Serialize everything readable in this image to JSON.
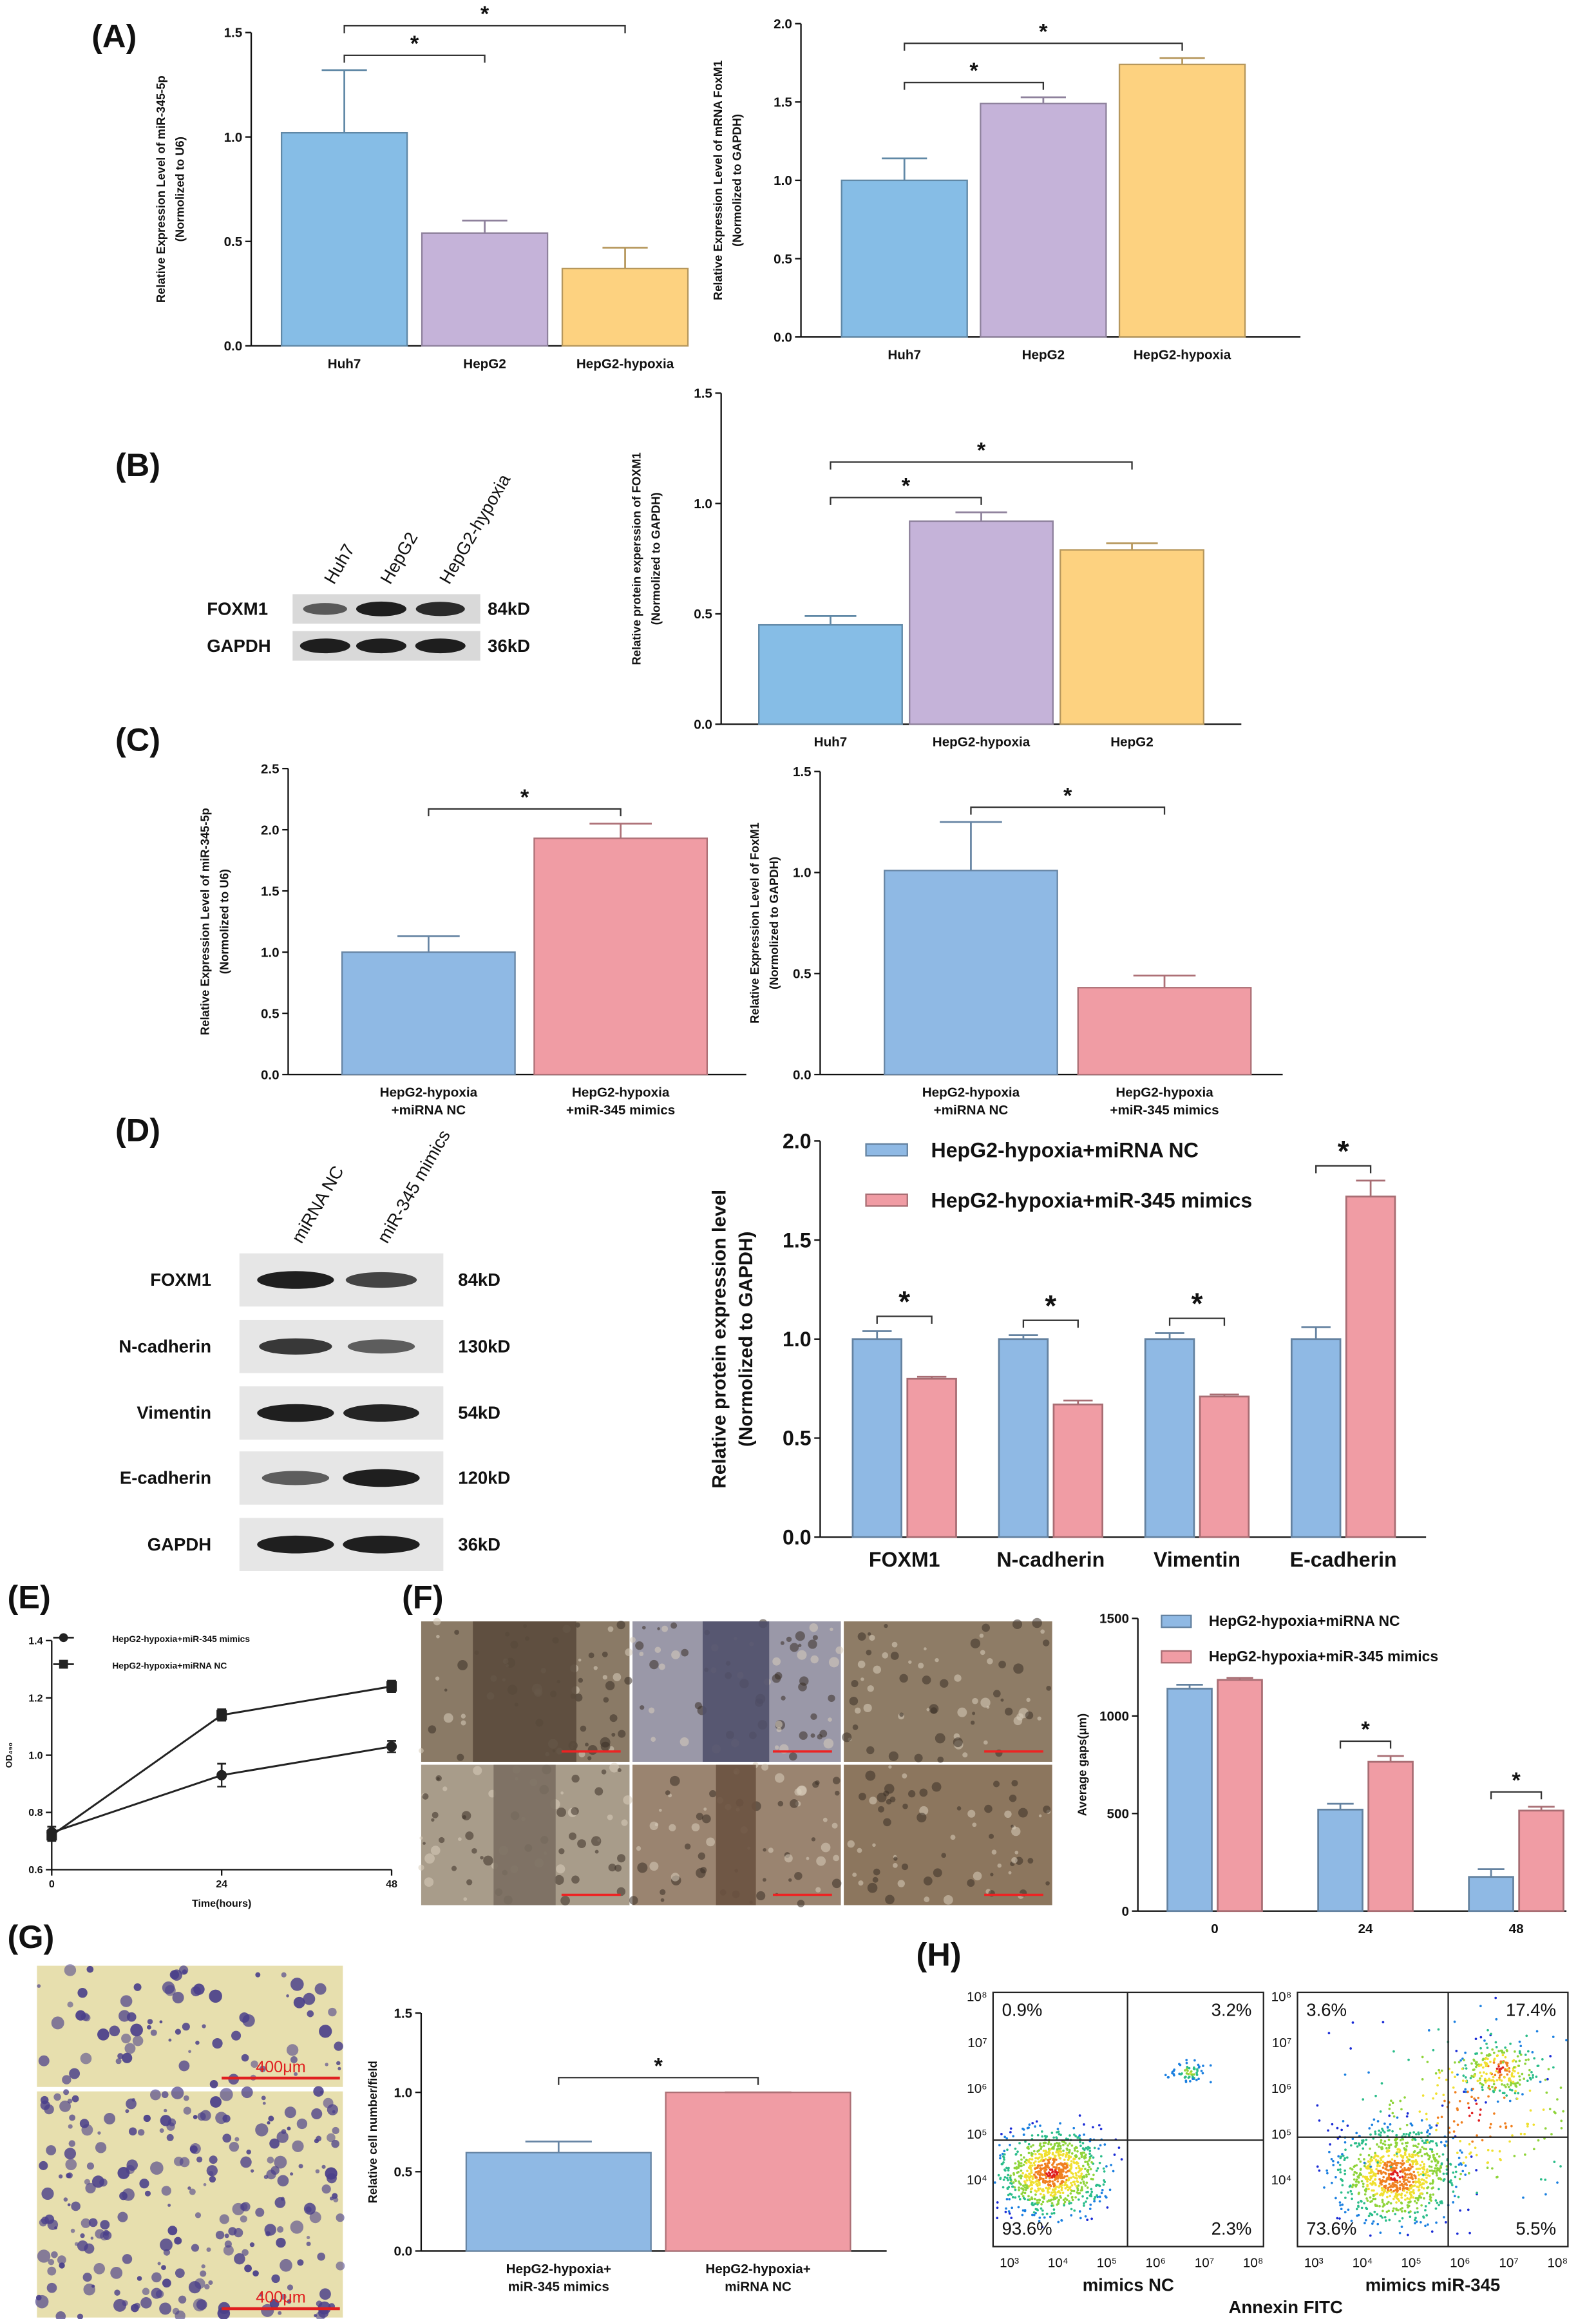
{
  "panel_labels": [
    "(A)",
    "(B)",
    "(C)",
    "(D)",
    "(E)",
    "(F)",
    "(G)",
    "(H)"
  ],
  "chart_data": [
    {
      "type": "bar",
      "categories": [
        "Huh7",
        "HepG2",
        "HepG2-hypoxia"
      ],
      "values": [
        1.02,
        0.54,
        0.37
      ],
      "errors": [
        0.3,
        0.06,
        0.1
      ],
      "colors": [
        "#86bde6",
        "#c5b3d9",
        "#fdd280"
      ],
      "ylim": [
        0,
        1.5
      ],
      "yticks": [
        {
          "value": 0,
          "label": "0.0"
        },
        0.5,
        {
          "value": 1,
          "label": "1.0"
        },
        1.5
      ],
      "ylabel": "Relative Expression Level of miR-345-5p\n(Normolized to U6)",
      "significance": [
        {
          "label": "*",
          "pair": [
            0,
            1
          ]
        },
        {
          "label": "*",
          "pair": [
            0,
            2
          ]
        }
      ]
    },
    {
      "type": "bar",
      "categories": [
        "Huh7",
        "HepG2",
        "HepG2-hypoxia"
      ],
      "values": [
        1.0,
        1.49,
        1.74
      ],
      "errors": [
        0.14,
        0.04,
        0.04
      ],
      "colors": [
        "#86bde6",
        "#c5b3d9",
        "#fdd280"
      ],
      "ylim": [
        0,
        2
      ],
      "yticks": [
        {
          "value": 0,
          "label": "0.0"
        },
        0.5,
        {
          "value": 1,
          "label": "1.0"
        },
        1.5,
        {
          "value": 2,
          "label": "2.0"
        }
      ],
      "ylabel": "Relative Expression Level of  mRNA FoxM1\n(Normolized to GAPDH)",
      "significance": [
        {
          "label": "*",
          "pair": [
            0,
            1
          ]
        },
        {
          "label": "*",
          "pair": [
            0,
            2
          ]
        }
      ]
    },
    {
      "type": "bar",
      "categories": [
        "Huh7",
        "HepG2-hypoxia",
        "HepG2"
      ],
      "values": [
        0.45,
        0.92,
        0.79
      ],
      "errors": [
        0.04,
        0.04,
        0.03
      ],
      "colors": [
        "#86bde6",
        "#c5b3d9",
        "#fdd280"
      ],
      "ylim": [
        0,
        1.5
      ],
      "yticks": [
        {
          "value": 0,
          "label": "0.0"
        },
        0.5,
        {
          "value": 1,
          "label": "1.0"
        },
        1.5
      ],
      "ylabel": "Relative protein experssion of FOXM1\n(Normolized to GAPDH)",
      "significance": [
        {
          "label": "*",
          "pair": [
            0,
            1
          ]
        },
        {
          "label": "*",
          "pair": [
            0,
            2
          ]
        }
      ]
    },
    {
      "type": "bar",
      "categories": [
        "HepG2-hypoxia\n+miRNA NC",
        "HepG2-hypoxia\n+miR-345 mimics"
      ],
      "values": [
        1.0,
        1.93
      ],
      "errors": [
        0.13,
        0.12
      ],
      "colors": [
        "#8fb9e4",
        "#f09ca4"
      ],
      "ylim": [
        0,
        2.5
      ],
      "yticks": [
        {
          "value": 0,
          "label": "0.0"
        },
        0.5,
        {
          "value": 1,
          "label": "1.0"
        },
        1.5,
        {
          "value": 2,
          "label": "2.0"
        },
        2.5
      ],
      "ylabel": "Relative Expression Level of  miR-345-5p\n(Normolized to U6)",
      "significance": [
        {
          "label": "*",
          "pair": [
            0,
            1
          ]
        }
      ]
    },
    {
      "type": "bar",
      "categories": [
        "HepG2-hypoxia\n+miRNA NC",
        "HepG2-hypoxia\n+miR-345 mimics"
      ],
      "values": [
        1.01,
        0.43
      ],
      "errors": [
        0.24,
        0.06
      ],
      "colors": [
        "#8fb9e4",
        "#f09ca4"
      ],
      "ylim": [
        0,
        1.5
      ],
      "yticks": [
        {
          "value": 0,
          "label": "0.0"
        },
        0.5,
        {
          "value": 1,
          "label": "1.0"
        },
        1.5
      ],
      "ylabel": "Relative Expression Level of FoxM1\n(Normolized to GAPDH)",
      "significance": [
        {
          "label": "*",
          "pair": [
            0,
            1
          ]
        }
      ]
    },
    {
      "type": "grouped_bar",
      "categories": [
        "FOXM1",
        "N-cadherin",
        "Vimentin",
        "E-cadherin"
      ],
      "series": [
        {
          "name": "HepG2-hypoxia+miRNA NC",
          "color": "#8fb9e4",
          "values": [
            1.0,
            1.0,
            1.0,
            1.0
          ],
          "errors": [
            0.04,
            0.02,
            0.03,
            0.06
          ]
        },
        {
          "name": "HepG2-hypoxia+miR-345 mimics",
          "color": "#f09ca4",
          "values": [
            0.8,
            0.67,
            0.71,
            1.72
          ],
          "errors": [
            0.01,
            0.02,
            0.01,
            0.08
          ]
        }
      ],
      "ylim": [
        0,
        2
      ],
      "yticks": [
        {
          "value": 0,
          "label": "0.0"
        },
        0.5,
        {
          "value": 1,
          "label": "1.0"
        },
        1.5,
        {
          "value": 2,
          "label": "2.0"
        }
      ],
      "ylabel": "Relative protein expression level\n(Normolized to GAPDH)",
      "legend": "upper left",
      "significance": [
        {
          "label": "*",
          "category": 0
        },
        {
          "label": "*",
          "category": 1
        },
        {
          "label": "*",
          "category": 2
        },
        {
          "label": "*",
          "category": 3
        }
      ]
    },
    {
      "type": "line",
      "x": [
        0,
        24,
        48
      ],
      "xlim": [
        0,
        48
      ],
      "xticks": [
        0,
        24,
        48
      ],
      "xlabel": "Time(hours)",
      "ylabel": "OD₄₉₀",
      "series": [
        {
          "name": "HepG2-hypoxia+miR-345 mimics",
          "color": "#222222",
          "marker": "circle",
          "values": [
            0.73,
            0.93,
            1.03
          ],
          "errors": [
            0.02,
            0.04,
            0.02
          ]
        },
        {
          "name": "HepG2-hypoxia+miRNA NC",
          "color": "#222222",
          "marker": "square",
          "values": [
            0.72,
            1.14,
            1.24
          ],
          "errors": [
            0.02,
            0.02,
            0.02
          ]
        }
      ],
      "ylim": [
        0.6,
        1.4
      ],
      "yticks": [
        0.6,
        0.8,
        {
          "value": 1,
          "label": "1.0"
        },
        1.2,
        1.4
      ],
      "legend": "upper left"
    },
    {
      "type": "grouped_bar",
      "categories": [
        "0",
        "24",
        "48"
      ],
      "series": [
        {
          "name": "HepG2-hypoxia+miRNA NC",
          "color": "#8fb9e4",
          "values": [
            1140,
            520,
            175
          ],
          "errors": [
            20,
            30,
            40
          ]
        },
        {
          "name": "HepG2-hypoxia+miR-345 mimics",
          "color": "#f09ca4",
          "values": [
            1185,
            765,
            515
          ],
          "errors": [
            10,
            30,
            20
          ]
        }
      ],
      "ylim": [
        0,
        1500
      ],
      "yticks": [
        0,
        500,
        1000,
        1500
      ],
      "ylabel": "Average gaps(μm)",
      "legend": "upper left",
      "significance": [
        {
          "label": "*",
          "category": 1
        },
        {
          "label": "*",
          "category": 2
        }
      ]
    },
    {
      "type": "bar",
      "categories": [
        "HepG2-hypoxia+\nmiR-345 mimics",
        "HepG2-hypoxia+\nmiRNA NC"
      ],
      "values": [
        0.62,
        1.0
      ],
      "errors": [
        0.07,
        0
      ],
      "colors": [
        "#8fb9e4",
        "#f09ca4"
      ],
      "ylim": [
        0,
        1.5
      ],
      "yticks": [
        {
          "value": 0,
          "label": "0.0"
        },
        0.5,
        {
          "value": 1,
          "label": "1.0"
        },
        1.5
      ],
      "ylabel": "Relative cell number/field",
      "significance": [
        {
          "label": "*",
          "pair": [
            0,
            1
          ]
        }
      ]
    }
  ],
  "blots": [
    {
      "lanes": [
        "Huh7",
        "HepG2",
        "HepG2-hypoxia"
      ],
      "rows": [
        {
          "name": "FOXM1",
          "size": "84kD"
        },
        {
          "name": "GAPDH",
          "size": "36kD"
        }
      ]
    },
    {
      "lanes": [
        "miRNA NC",
        "miR-345 mimics"
      ],
      "rows": [
        {
          "name": "FOXM1",
          "size": "84kD"
        },
        {
          "name": "N-cadherin",
          "size": "130kD"
        },
        {
          "name": "Vimentin",
          "size": "54kD"
        },
        {
          "name": "E-cadherin",
          "size": "120kD"
        },
        {
          "name": "GAPDH",
          "size": "36kD"
        }
      ]
    }
  ],
  "images": {
    "scale_labels": [
      "400μm",
      "400μm"
    ]
  },
  "flow": {
    "xlabel": "Annexin FITC",
    "xticks": [
      "10³",
      "10⁴",
      "10⁵",
      "10⁶",
      "10⁷",
      "10⁸"
    ],
    "yticks": [
      "10⁴",
      "10⁵",
      "10⁶",
      "10⁷",
      "10⁸"
    ],
    "plots": [
      {
        "name": "mimics NC",
        "quadrants": [
          "0.9%",
          "3.2%",
          "93.6%",
          "2.3%"
        ]
      },
      {
        "name": "mimics miR-345",
        "quadrants": [
          "3.6%",
          "17.4%",
          "73.6%",
          "5.5%"
        ]
      }
    ]
  }
}
